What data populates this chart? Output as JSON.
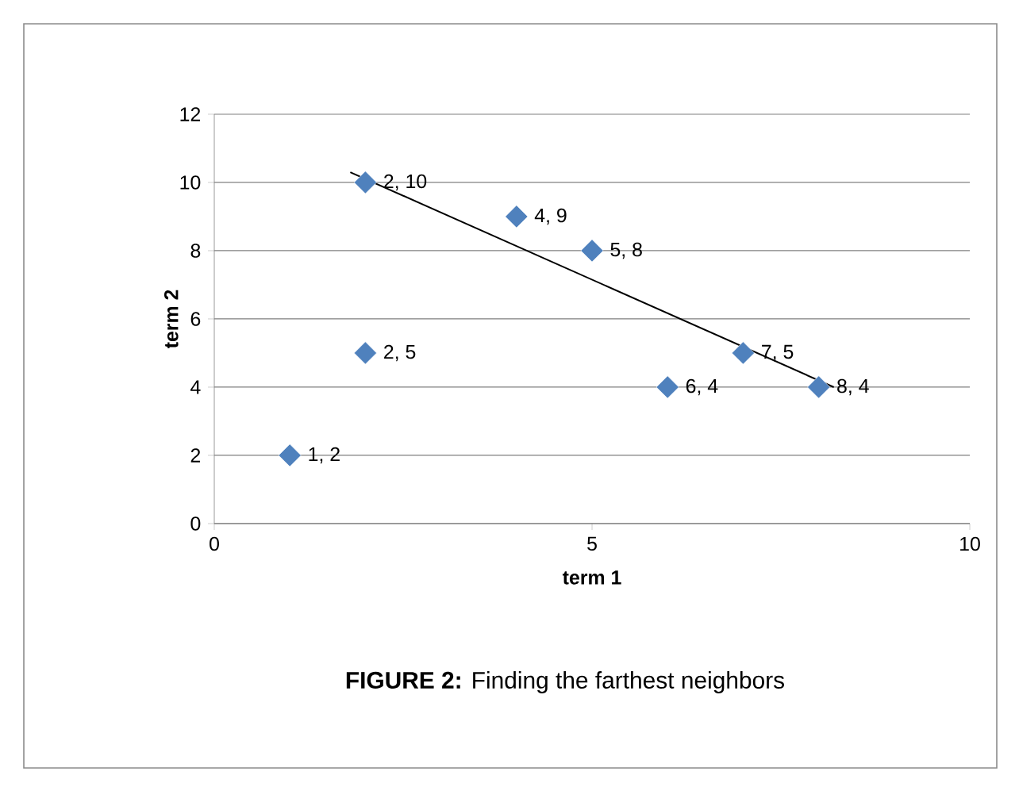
{
  "chart_data": {
    "type": "scatter",
    "xlabel": "term 1",
    "ylabel": "term 2",
    "annotations": [
      "**FIGURE 2:** Finding the farthest neighbors"
    ],
    "xlim": [
      0,
      10
    ],
    "xticks": [
      0,
      5,
      10
    ],
    "ylim": [
      0,
      12
    ],
    "yticks": [
      0,
      2,
      4,
      6,
      8,
      10,
      12
    ],
    "grid": "y",
    "marker": "diamond",
    "series": [
      {
        "color": "#4f81bd",
        "x": [
          1,
          2,
          2,
          4,
          5,
          6,
          7,
          8
        ],
        "values": [
          2,
          10,
          5,
          9,
          8,
          4,
          5,
          4
        ],
        "value_labels": [
          "1, 2",
          "2, 10",
          "2, 5",
          "4, 9",
          "5, 8",
          "6, 4",
          "7, 5",
          "8, 4"
        ]
      },
      {
        "type": "line",
        "color": "#000000",
        "x": [
          1.8,
          8.2
        ],
        "values": [
          10.3,
          4.0
        ],
        "marker": "none",
        "line_style": "solid"
      }
    ]
  }
}
